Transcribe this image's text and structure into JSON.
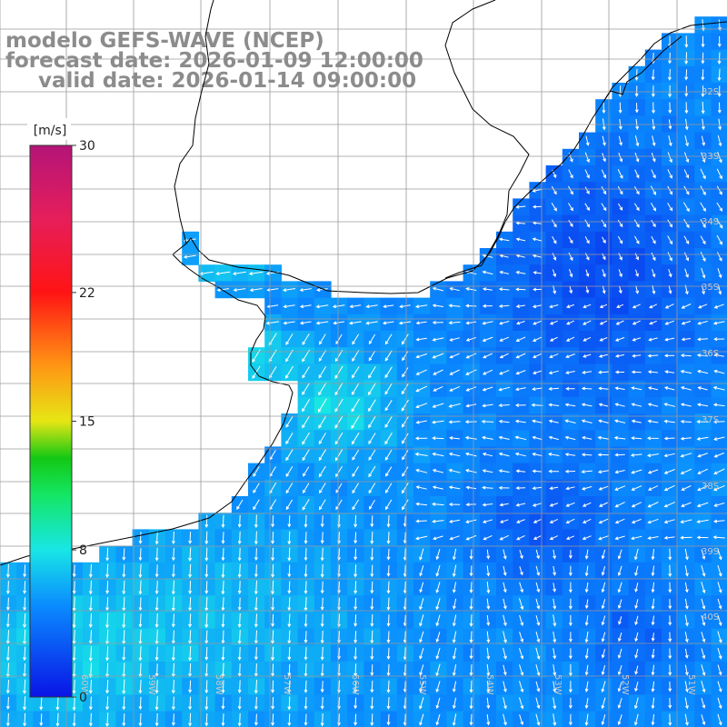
{
  "title": {
    "line1": "modelo GEFS-WAVE (NCEP)",
    "line2": "forecast date: 2026-01-09 12:00:00",
    "line3": "valid date: 2026-01-14 09:00:00"
  },
  "colorbar": {
    "unit": "[m/s]",
    "ticks": [
      "30",
      "22",
      "15",
      "8",
      "0"
    ],
    "tick_values": [
      30,
      22,
      15,
      8,
      0
    ],
    "stops": [
      {
        "v": 0,
        "color": "#0a14e6"
      },
      {
        "v": 5,
        "color": "#0a8cff"
      },
      {
        "v": 8,
        "color": "#18e6e6"
      },
      {
        "v": 11,
        "color": "#14e664"
      },
      {
        "v": 13,
        "color": "#14c814"
      },
      {
        "v": 15,
        "color": "#e6e614"
      },
      {
        "v": 18,
        "color": "#ff9614"
      },
      {
        "v": 22,
        "color": "#ff1414"
      },
      {
        "v": 26,
        "color": "#e61e5a"
      },
      {
        "v": 30,
        "color": "#b41478"
      }
    ]
  },
  "lat_labels": [
    "32S",
    "33S",
    "34S",
    "35S",
    "36S",
    "37S",
    "38S",
    "39S",
    "40S"
  ],
  "lon_labels": [
    "60W",
    "59W",
    "58W",
    "57W",
    "56W",
    "55W",
    "54W",
    "53W",
    "52W",
    "51W"
  ],
  "colors": {
    "land": "#ffffff",
    "coast": "#000000",
    "grid": "#9a9a9a",
    "arrow": "#ffffff"
  }
}
